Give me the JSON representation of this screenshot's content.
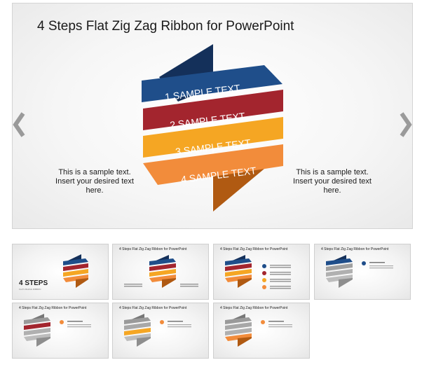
{
  "slide": {
    "title": "4 Steps Flat Zig Zag Ribbon for PowerPoint",
    "left_text": [
      "This is a sample text.",
      "Insert your desired text",
      "here."
    ],
    "right_text": [
      "This is a sample text.",
      "Insert your desired text",
      "here."
    ],
    "ribbons": [
      {
        "label": "1 SAMPLE TEXT",
        "color": "#1f4e8a"
      },
      {
        "label": "2 SAMPLE TEXT",
        "color": "#a3252e"
      },
      {
        "label": "3 SAMPLE TEXT",
        "color": "#f5a623"
      },
      {
        "label": "4 SAMPLE TEXT",
        "color": "#f28c3b"
      }
    ],
    "fold_colors": {
      "top": "#14305a",
      "bottom": "#b05a12"
    }
  },
  "navigation": {
    "prev_icon": "chevron-left-icon",
    "next_icon": "chevron-right-icon",
    "arrow_color": "#9a9a9a"
  },
  "thumbnails": [
    {
      "id": "thumb-1",
      "title": "",
      "cover": "4 STEPS",
      "cover_sub": "FLAT ZIGZAG RIBBON"
    },
    {
      "id": "thumb-2",
      "title": "4 Steps Flat Zig Zag Ribbon for PowerPoint"
    },
    {
      "id": "thumb-3",
      "title": "4 Steps Flat Zig Zag Ribbon for PowerPoint"
    },
    {
      "id": "thumb-4",
      "title": "4 Steps Flat Zig Zag Ribbon for PowerPoint"
    },
    {
      "id": "thumb-5",
      "title": "4 Steps Flat Zig Zag Ribbon for PowerPoint"
    },
    {
      "id": "thumb-6",
      "title": "4 Steps Flat Zig Zag Ribbon for PowerPoint"
    },
    {
      "id": "thumb-7",
      "title": "4 Steps Flat Zig Zag Ribbon for PowerPoint"
    }
  ]
}
